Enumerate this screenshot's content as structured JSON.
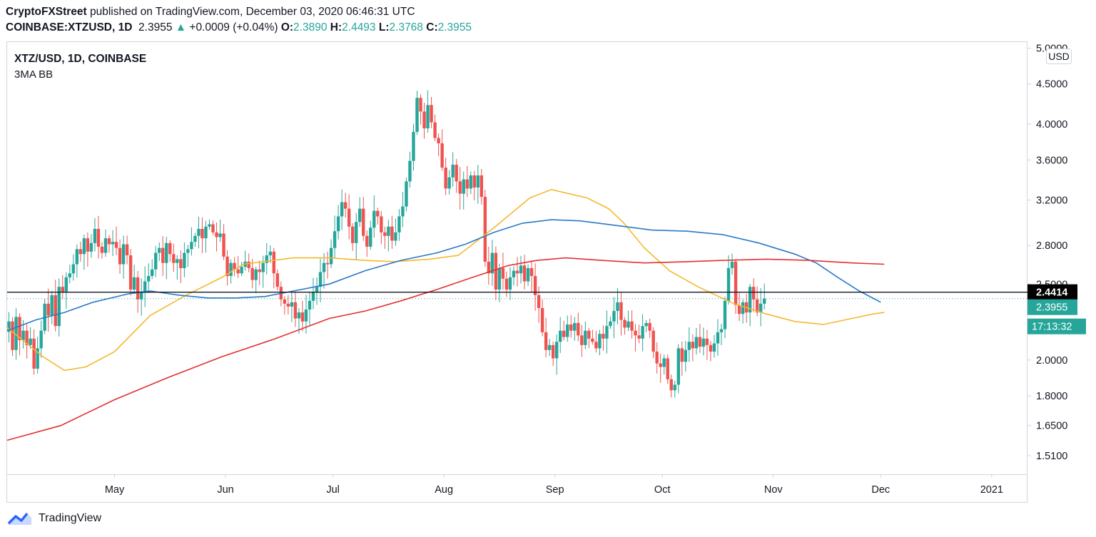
{
  "header": {
    "publisher": "CryptoFXStreet",
    "published_text": " published on TradingView.com, December 03, 2020 06:46:31 UTC",
    "symbol": "COINBASE:XTZUSD, 1D",
    "price": "2.3955",
    "change_arrow": "▲",
    "change": "+0.0009 (+0.04%)",
    "o_label": "O:",
    "o_value": "2.3890",
    "h_label": "H:",
    "h_value": "2.4493",
    "l_label": "L:",
    "l_value": "2.3768",
    "c_label": "C:",
    "c_value": "2.3955"
  },
  "legend": {
    "title": "XTZ/USD, 1D, COINBASE",
    "indicator": "3MA BB"
  },
  "currency_badge": "USD",
  "price_labels": {
    "line_level": "2.4414",
    "last_price": "2.3955",
    "countdown": "17:13:32"
  },
  "footer": {
    "brand": "TradingView"
  },
  "colors": {
    "up": "#26a69a",
    "down": "#ef5350",
    "ma_fast": "#f5b82e",
    "ma_mid": "#2979c8",
    "ma_slow": "#e53030",
    "axis_text": "#131722",
    "border": "#d1d4dc"
  },
  "chart_data": {
    "type": "candlestick",
    "title": "XTZ/USD, 1D, COINBASE",
    "y_scale": "log",
    "ylim": [
      1.43,
      5.1
    ],
    "y_ticks": [
      "1.5100",
      "1.6500",
      "1.8000",
      "2.0000",
      "2.5000",
      "2.8000",
      "3.2000",
      "3.6000",
      "4.0000",
      "4.5000",
      "5.0000"
    ],
    "x_ticks": [
      {
        "label": "May",
        "day": 30
      },
      {
        "label": "Jun",
        "day": 61
      },
      {
        "label": "Jul",
        "day": 91
      },
      {
        "label": "Aug",
        "day": 122
      },
      {
        "label": "Sep",
        "day": 153
      },
      {
        "label": "Oct",
        "day": 183
      },
      {
        "label": "Nov",
        "day": 214
      },
      {
        "label": "Dec",
        "day": 244
      },
      {
        "label": "2021",
        "day": 275
      }
    ],
    "x_range_days": [
      0,
      285
    ],
    "horizontal_line": 2.4414,
    "last_close": 2.3955,
    "closes": [
      2.24,
      2.06,
      2.27,
      2.12,
      2.18,
      2.09,
      2.13,
      1.95,
      2.07,
      2.18,
      2.36,
      2.28,
      2.42,
      2.21,
      2.48,
      2.44,
      2.55,
      2.58,
      2.65,
      2.77,
      2.73,
      2.86,
      2.75,
      2.82,
      2.94,
      2.79,
      2.74,
      2.86,
      2.81,
      2.83,
      2.78,
      2.65,
      2.81,
      2.72,
      2.46,
      2.55,
      2.39,
      2.44,
      2.52,
      2.56,
      2.61,
      2.74,
      2.78,
      2.66,
      2.82,
      2.73,
      2.66,
      2.69,
      2.62,
      2.74,
      2.77,
      2.83,
      2.88,
      2.94,
      2.86,
      2.96,
      2.98,
      2.91,
      2.87,
      2.9,
      2.71,
      2.56,
      2.66,
      2.61,
      2.58,
      2.63,
      2.67,
      2.62,
      2.53,
      2.61,
      2.59,
      2.66,
      2.72,
      2.75,
      2.58,
      2.48,
      2.39,
      2.36,
      2.34,
      2.37,
      2.26,
      2.3,
      2.24,
      2.32,
      2.38,
      2.44,
      2.48,
      2.59,
      2.66,
      2.65,
      2.78,
      2.92,
      3.05,
      3.18,
      3.12,
      2.96,
      2.82,
      3.0,
      3.12,
      2.88,
      2.79,
      2.95,
      3.1,
      3.05,
      2.91,
      2.88,
      2.96,
      2.84,
      2.91,
      3.05,
      3.14,
      3.38,
      3.59,
      3.91,
      4.32,
      4.15,
      3.95,
      4.23,
      4.02,
      3.84,
      3.78,
      3.52,
      3.31,
      3.42,
      3.55,
      3.38,
      3.26,
      3.4,
      3.31,
      3.44,
      3.32,
      3.44,
      3.23,
      2.67,
      2.58,
      2.74,
      2.46,
      2.62,
      2.54,
      2.46,
      2.55,
      2.6,
      2.58,
      2.64,
      2.52,
      2.62,
      2.56,
      2.42,
      2.33,
      2.17,
      2.06,
      2.09,
      2.01,
      2.11,
      2.18,
      2.14,
      2.22,
      2.18,
      2.23,
      2.15,
      2.09,
      2.18,
      2.13,
      2.11,
      2.07,
      2.16,
      2.13,
      2.21,
      2.24,
      2.31,
      2.37,
      2.25,
      2.2,
      2.24,
      2.18,
      2.15,
      2.13,
      2.21,
      2.23,
      2.18,
      2.05,
      1.98,
      1.96,
      2.01,
      1.89,
      1.83,
      1.86,
      2.07,
      1.99,
      2.06,
      2.11,
      2.07,
      2.14,
      2.08,
      2.13,
      2.09,
      2.05,
      2.1,
      2.17,
      2.19,
      2.38,
      2.62,
      2.67,
      2.35,
      2.29,
      2.37,
      2.3,
      2.48,
      2.39,
      2.3,
      2.36,
      2.3955
    ],
    "series": [
      {
        "name": "MA fast",
        "points": [
          [
            0,
            2.2
          ],
          [
            10,
            2.02
          ],
          [
            16,
            1.94
          ],
          [
            22,
            1.96
          ],
          [
            30,
            2.05
          ],
          [
            40,
            2.28
          ],
          [
            50,
            2.42
          ],
          [
            60,
            2.55
          ],
          [
            66,
            2.65
          ],
          [
            80,
            2.7
          ],
          [
            90,
            2.7
          ],
          [
            100,
            2.68
          ],
          [
            108,
            2.67
          ],
          [
            118,
            2.69
          ],
          [
            126,
            2.72
          ],
          [
            136,
            2.95
          ],
          [
            146,
            3.22
          ],
          [
            152,
            3.3
          ],
          [
            162,
            3.22
          ],
          [
            168,
            3.12
          ],
          [
            172,
            3.0
          ],
          [
            178,
            2.78
          ],
          [
            185,
            2.6
          ],
          [
            193,
            2.48
          ],
          [
            203,
            2.36
          ],
          [
            212,
            2.29
          ],
          [
            220,
            2.24
          ],
          [
            228,
            2.22
          ],
          [
            236,
            2.26
          ],
          [
            242,
            2.29
          ],
          [
            245,
            2.3
          ]
        ]
      },
      {
        "name": "MA mid",
        "points": [
          [
            0,
            2.18
          ],
          [
            8,
            2.25
          ],
          [
            16,
            2.3
          ],
          [
            24,
            2.37
          ],
          [
            34,
            2.43
          ],
          [
            40,
            2.45
          ],
          [
            48,
            2.42
          ],
          [
            56,
            2.4
          ],
          [
            64,
            2.4
          ],
          [
            72,
            2.41
          ],
          [
            80,
            2.45
          ],
          [
            90,
            2.5
          ],
          [
            100,
            2.6
          ],
          [
            110,
            2.68
          ],
          [
            120,
            2.74
          ],
          [
            128,
            2.81
          ],
          [
            136,
            2.91
          ],
          [
            144,
            2.99
          ],
          [
            152,
            3.02
          ],
          [
            160,
            3.01
          ],
          [
            170,
            2.97
          ],
          [
            180,
            2.93
          ],
          [
            190,
            2.92
          ],
          [
            200,
            2.89
          ],
          [
            210,
            2.82
          ],
          [
            220,
            2.73
          ],
          [
            226,
            2.66
          ],
          [
            232,
            2.55
          ],
          [
            238,
            2.45
          ],
          [
            244,
            2.37
          ]
        ]
      },
      {
        "name": "MA slow",
        "points": [
          [
            0,
            1.58
          ],
          [
            15,
            1.65
          ],
          [
            30,
            1.78
          ],
          [
            45,
            1.9
          ],
          [
            60,
            2.02
          ],
          [
            75,
            2.13
          ],
          [
            90,
            2.26
          ],
          [
            100,
            2.31
          ],
          [
            110,
            2.38
          ],
          [
            120,
            2.46
          ],
          [
            130,
            2.55
          ],
          [
            140,
            2.64
          ],
          [
            148,
            2.68
          ],
          [
            156,
            2.7
          ],
          [
            166,
            2.68
          ],
          [
            178,
            2.66
          ],
          [
            190,
            2.67
          ],
          [
            200,
            2.68
          ],
          [
            212,
            2.69
          ],
          [
            224,
            2.68
          ],
          [
            236,
            2.66
          ],
          [
            245,
            2.65
          ]
        ]
      }
    ]
  }
}
